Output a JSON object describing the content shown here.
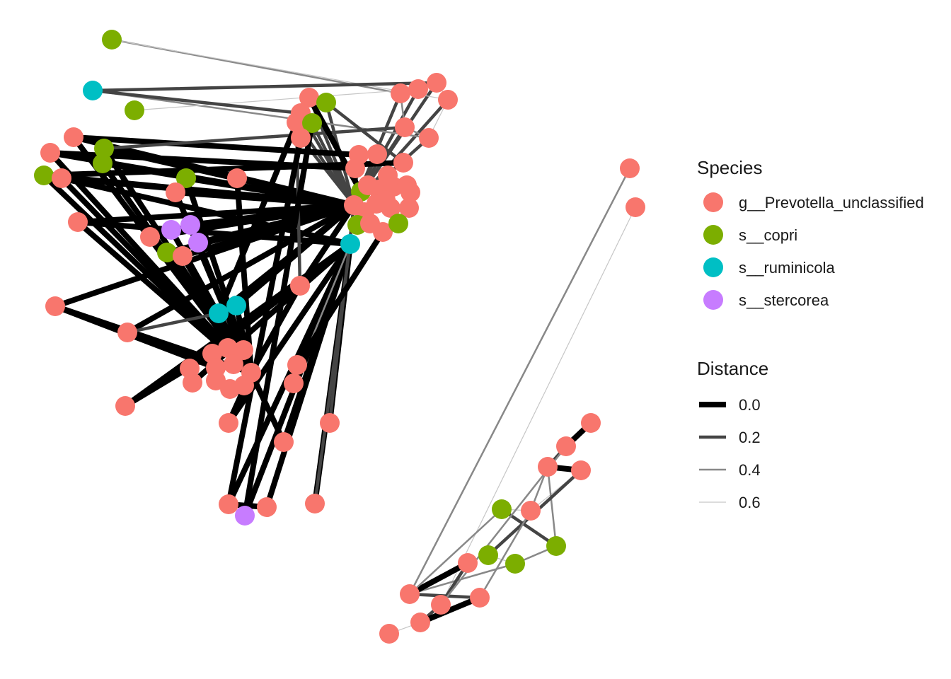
{
  "legend_species": {
    "title": "Species",
    "items": [
      {
        "label": "g__Prevotella_unclassified",
        "color": "#F8766D"
      },
      {
        "label": "s__copri",
        "color": "#7CAE00"
      },
      {
        "label": "s__ruminicola",
        "color": "#00BFC4"
      },
      {
        "label": "s__stercorea",
        "color": "#C77CFF"
      }
    ]
  },
  "legend_distance": {
    "title": "Distance",
    "items": [
      {
        "label": "0.0",
        "value": 0.0,
        "color": "#000000"
      },
      {
        "label": "0.2",
        "value": 0.2,
        "color": "#444444"
      },
      {
        "label": "0.4",
        "value": 0.4,
        "color": "#888888"
      },
      {
        "label": "0.6",
        "value": 0.6,
        "color": "#c6c6c6"
      }
    ]
  },
  "background": "#ffffff"
}
